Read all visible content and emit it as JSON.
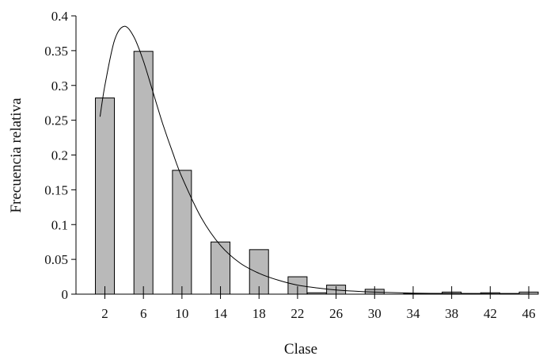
{
  "chart_data": {
    "type": "bar",
    "xlabel": "Clase",
    "ylabel": "Frecuencia relativa",
    "categories": [
      "2",
      "6",
      "10",
      "14",
      "18",
      "22",
      "26",
      "30",
      "34",
      "38",
      "42",
      "46"
    ],
    "x_ticks": [
      2,
      6,
      10,
      14,
      18,
      22,
      26,
      30,
      34,
      38,
      42,
      46
    ],
    "y_ticks": [
      0,
      0.05,
      0.1,
      0.15,
      0.2,
      0.25,
      0.3,
      0.35,
      0.4
    ],
    "y_tick_labels": [
      "0",
      "0.05",
      "0.1",
      "0.15",
      "0.2",
      "0.25",
      "0.3",
      "0.35",
      "0.4"
    ],
    "ylim": [
      0,
      0.4
    ],
    "xlim": [
      -1,
      46
    ],
    "series": [
      {
        "values": [
          0.282,
          0.349,
          0.178,
          0.075,
          0.064,
          0.025,
          0.013,
          0.007,
          0.001,
          0.003,
          0.002,
          0.003
        ]
      }
    ],
    "small_bars": [
      {
        "x": 24,
        "value": 0.002
      },
      {
        "x": 36,
        "value": 0.001
      },
      {
        "x": 40,
        "value": 0.001
      },
      {
        "x": 44,
        "value": 0.001
      }
    ],
    "fitted_curve": {
      "type": "line",
      "points": [
        [
          1.5,
          0.255
        ],
        [
          2,
          0.3
        ],
        [
          3,
          0.365
        ],
        [
          4,
          0.385
        ],
        [
          5,
          0.37
        ],
        [
          6,
          0.335
        ],
        [
          7,
          0.29
        ],
        [
          8,
          0.245
        ],
        [
          9,
          0.205
        ],
        [
          10,
          0.168
        ],
        [
          12,
          0.11
        ],
        [
          14,
          0.07
        ],
        [
          16,
          0.045
        ],
        [
          18,
          0.03
        ],
        [
          20,
          0.02
        ],
        [
          22,
          0.013
        ],
        [
          24,
          0.009
        ],
        [
          26,
          0.006
        ],
        [
          30,
          0.003
        ],
        [
          34,
          0.0015
        ],
        [
          38,
          0.0008
        ],
        [
          42,
          0.0004
        ],
        [
          46,
          0.0002
        ]
      ]
    },
    "grid": false
  }
}
